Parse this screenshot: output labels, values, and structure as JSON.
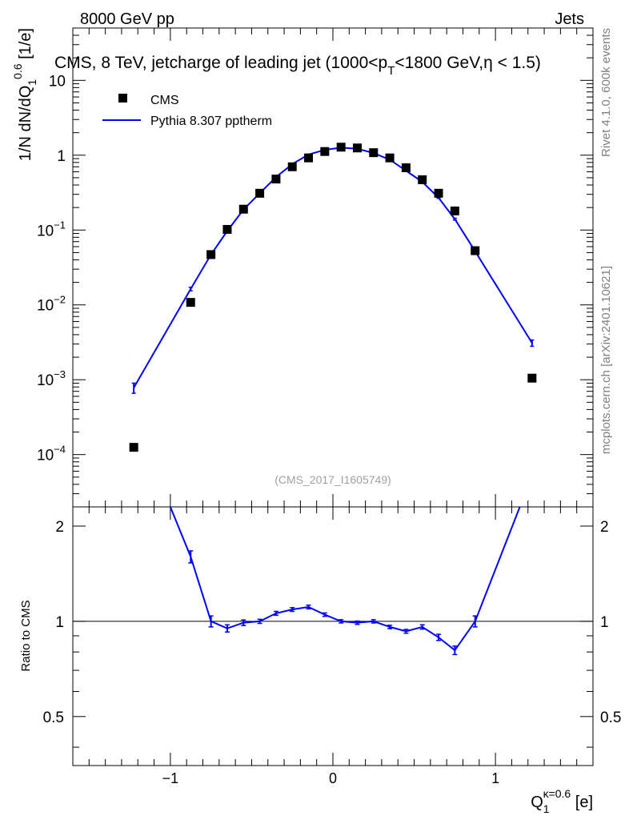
{
  "header": {
    "left": "8000 GeV pp",
    "right": "Jets"
  },
  "side_labels": {
    "rivet": "Rivet 4.1.0,  600k events",
    "mcplots": "mcplots.cern.ch [arXiv:2401.10621]"
  },
  "chart_data": {
    "type": "line",
    "title_parts": {
      "main": "CMS, 8 TeV, jetcharge of leading jet (1000<p",
      "sub": "T",
      "rest": "<1800 GeV,η < 1.5)"
    },
    "watermark": "(CMS_2017_I1605749)",
    "xlabel": {
      "main": "Q",
      "sub": "1",
      "sup": "κ=0.6",
      "unit": " [e]"
    },
    "ylabel_upper": {
      "pre": "1/N dN/dQ",
      "sub": "1",
      "sup": "0.6",
      "unit": " [1/e]"
    },
    "ylabel_lower": "Ratio to CMS",
    "xlim": [
      -1.6,
      1.6
    ],
    "ylim_upper": [
      2e-05,
      50
    ],
    "ylim_lower": [
      0.35,
      2.3
    ],
    "x_ticks": [
      -1,
      0,
      1
    ],
    "x_tick_labels": [
      "−1",
      "0",
      "1"
    ],
    "upper_y_ticks": [
      0.0001,
      0.001,
      0.01,
      0.1,
      1,
      10
    ],
    "upper_y_tick_labels": [
      {
        "base": "10",
        "exp": "−4"
      },
      {
        "base": "10",
        "exp": "−3"
      },
      {
        "base": "10",
        "exp": "−2"
      },
      {
        "base": "10",
        "exp": "−1"
      },
      {
        "base": "1",
        "exp": ""
      },
      {
        "base": "10",
        "exp": ""
      }
    ],
    "lower_y_ticks": [
      0.5,
      1,
      2
    ],
    "lower_y_tick_labels": [
      "0.5",
      "1",
      "2"
    ],
    "legend": [
      {
        "name": "CMS",
        "marker": "square",
        "color": "#000000"
      },
      {
        "name": "Pythia 8.307 pptherm",
        "marker": "line",
        "color": "#0000ff"
      }
    ],
    "series": [
      {
        "name": "CMS",
        "color": "#000000",
        "x": [
          -1.225,
          -0.875,
          -0.75,
          -0.65,
          -0.55,
          -0.45,
          -0.35,
          -0.25,
          -0.15,
          -0.05,
          0.05,
          0.15,
          0.25,
          0.35,
          0.45,
          0.55,
          0.65,
          0.75,
          0.875,
          1.225
        ],
        "y": [
          0.000125,
          0.0108,
          0.047,
          0.102,
          0.19,
          0.31,
          0.48,
          0.7,
          0.92,
          1.12,
          1.28,
          1.25,
          1.08,
          0.92,
          0.68,
          0.47,
          0.31,
          0.18,
          0.053,
          0.00105
        ]
      },
      {
        "name": "Pythia 8.307 pptherm",
        "color": "#0000ff",
        "x": [
          -1.225,
          -0.875,
          -0.75,
          -0.65,
          -0.55,
          -0.45,
          -0.35,
          -0.25,
          -0.15,
          -0.05,
          0.05,
          0.15,
          0.25,
          0.35,
          0.45,
          0.55,
          0.65,
          0.75,
          0.875,
          1.225
        ],
        "y": [
          0.00078,
          0.0163,
          0.047,
          0.097,
          0.188,
          0.31,
          0.51,
          0.76,
          1.02,
          1.18,
          1.26,
          1.22,
          1.07,
          0.87,
          0.62,
          0.44,
          0.27,
          0.14,
          0.052,
          0.0031
        ],
        "yerr": [
          0.00012,
          0.0009,
          0.002,
          0.003,
          0.004,
          0.006,
          0.008,
          0.01,
          0.012,
          0.013,
          0.014,
          0.013,
          0.012,
          0.01,
          0.008,
          0.006,
          0.005,
          0.004,
          0.002,
          0.0003
        ]
      }
    ],
    "ratio": {
      "name": "Pythia 8.307 pptherm / CMS",
      "color": "#0000ff",
      "x": [
        -1.0,
        -0.875,
        -0.75,
        -0.65,
        -0.55,
        -0.45,
        -0.35,
        -0.25,
        -0.15,
        -0.05,
        0.05,
        0.15,
        0.25,
        0.35,
        0.45,
        0.55,
        0.65,
        0.75,
        0.875,
        1.15
      ],
      "y": [
        2.3,
        1.6,
        1.0,
        0.95,
        0.99,
        1.0,
        1.06,
        1.09,
        1.11,
        1.05,
        1.0,
        0.99,
        1.0,
        0.96,
        0.93,
        0.96,
        0.89,
        0.81,
        1.0,
        2.3
      ],
      "yerr": [
        0.0,
        0.07,
        0.04,
        0.025,
        0.02,
        0.015,
        0.015,
        0.015,
        0.015,
        0.013,
        0.012,
        0.012,
        0.012,
        0.012,
        0.013,
        0.015,
        0.02,
        0.025,
        0.04,
        0.0
      ]
    }
  }
}
